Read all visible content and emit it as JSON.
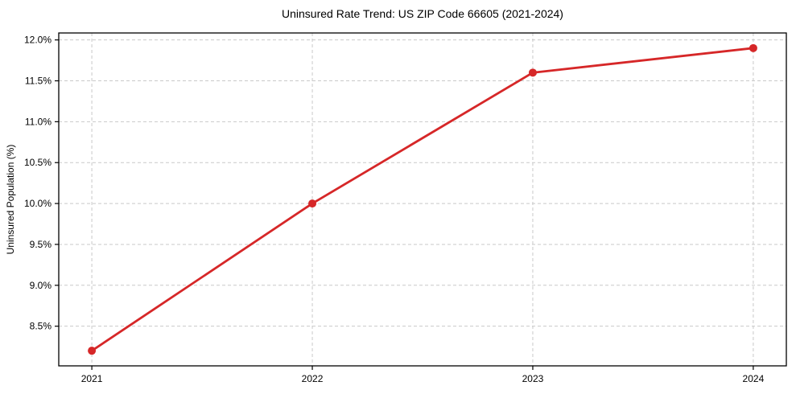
{
  "figure": {
    "background": "#ffffff"
  },
  "chart_data": {
    "type": "line",
    "title": "Uninsured Rate Trend: US ZIP Code 66605 (2021-2024)",
    "xlabel": "",
    "ylabel": "Uninsured Population (%)",
    "x": [
      2021,
      2022,
      2023,
      2024
    ],
    "values": [
      8.2,
      10.0,
      11.6,
      11.9
    ],
    "x_tick_labels": [
      "2021",
      "2022",
      "2023",
      "2024"
    ],
    "y_ticks": [
      8.5,
      9.0,
      9.5,
      10.0,
      10.5,
      11.0,
      11.5,
      12.0
    ],
    "y_tick_labels": [
      "8.5%",
      "9.0%",
      "9.5%",
      "10.0%",
      "10.5%",
      "11.0%",
      "11.5%",
      "12.0%"
    ],
    "xlim": [
      2020.85,
      2024.15
    ],
    "ylim": [
      8.015,
      12.085
    ],
    "grid": true,
    "grid_style": "dashed",
    "legend": "none",
    "marker": "circle",
    "colors": {
      "line": "#d62728",
      "marker": "#d62728",
      "grid": "#c9c9c9",
      "spine": "#000000",
      "text": "#000000",
      "background": "#ffffff"
    }
  }
}
